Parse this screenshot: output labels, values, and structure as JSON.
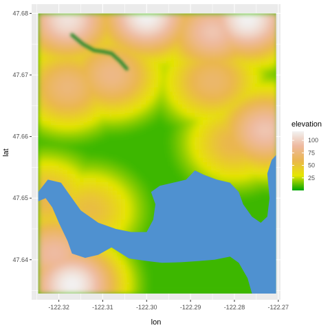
{
  "chart_data": {
    "type": "heatmap",
    "title": "",
    "xlabel": "lon",
    "ylabel": "lat",
    "xlim": [
      -122.3262,
      -122.2695
    ],
    "ylim": [
      47.6335,
      47.6815
    ],
    "x_ticks": [
      -122.32,
      -122.31,
      -122.3,
      -122.29,
      -122.28,
      -122.27
    ],
    "x_tick_labels": [
      "-122.32",
      "-122.31",
      "-122.30",
      "-122.29",
      "-122.28",
      "-122.27"
    ],
    "y_ticks": [
      47.64,
      47.65,
      47.66,
      47.67,
      47.68
    ],
    "y_tick_labels": [
      "47.64",
      "47.65",
      "47.66",
      "47.67",
      "47.68"
    ],
    "grid": true,
    "legend": {
      "title": "elevation",
      "placement": "right",
      "breaks": [
        100,
        75,
        50,
        25
      ],
      "break_labels": [
        "100",
        "75",
        "50",
        "25"
      ],
      "range": [
        0,
        118
      ],
      "gradient": [
        "#00a600",
        "#e6e600",
        "#eab64e",
        "#eeb99f",
        "#f2f2f2"
      ]
    },
    "water_color": "#4f91d0",
    "panel_background": "#ebebeb",
    "grid_color": "#ffffff",
    "extent": {
      "lon": [
        -122.3247,
        -122.2705
      ],
      "lat": [
        47.6345,
        47.68
      ]
    },
    "highlands": [
      {
        "lon": -122.318,
        "lat": 47.679,
        "elev": 110
      },
      {
        "lon": -122.3,
        "lat": 47.6795,
        "elev": 118
      },
      {
        "lon": -122.285,
        "lat": 47.677,
        "elev": 95
      },
      {
        "lon": -122.277,
        "lat": 47.679,
        "elev": 118
      },
      {
        "lon": -122.318,
        "lat": 47.668,
        "elev": 75
      },
      {
        "lon": -122.308,
        "lat": 47.67,
        "elev": 80
      },
      {
        "lon": -122.285,
        "lat": 47.669,
        "elev": 70
      },
      {
        "lon": -122.273,
        "lat": 47.661,
        "elev": 95
      },
      {
        "lon": -122.28,
        "lat": 47.659,
        "elev": 60
      },
      {
        "lon": -122.317,
        "lat": 47.636,
        "elev": 118
      },
      {
        "lon": -122.321,
        "lat": 47.641,
        "elev": 90
      },
      {
        "lon": -122.313,
        "lat": 47.648,
        "elev": 55
      },
      {
        "lon": -122.323,
        "lat": 47.65,
        "elev": 60
      }
    ],
    "water": {
      "lake_union": [
        [
          -122.3247,
          47.651
        ],
        [
          -122.3225,
          47.653
        ],
        [
          -122.3195,
          47.6525
        ],
        [
          -122.3175,
          47.6505
        ],
        [
          -122.315,
          47.648
        ],
        [
          -122.311,
          47.646
        ],
        [
          -122.307,
          47.645
        ],
        [
          -122.3035,
          47.6445
        ],
        [
          -122.3,
          47.6445
        ],
        [
          -122.2985,
          47.6465
        ],
        [
          -122.298,
          47.649
        ],
        [
          -122.299,
          47.651
        ],
        [
          -122.297,
          47.652
        ],
        [
          -122.294,
          47.6525
        ],
        [
          -122.291,
          47.653
        ],
        [
          -122.289,
          47.6545
        ],
        [
          -122.287,
          47.6538
        ],
        [
          -122.284,
          47.653
        ],
        [
          -122.281,
          47.6525
        ],
        [
          -122.279,
          47.651
        ],
        [
          -122.278,
          47.649
        ],
        [
          -122.276,
          47.647
        ],
        [
          -122.274,
          47.646
        ],
        [
          -122.2725,
          47.647
        ],
        [
          -122.272,
          47.65
        ],
        [
          -122.2725,
          47.654
        ],
        [
          -122.2715,
          47.6562
        ],
        [
          -122.2705,
          47.657
        ],
        [
          -122.2705,
          47.6345
        ],
        [
          -122.276,
          47.6345
        ],
        [
          -122.277,
          47.637
        ],
        [
          -122.279,
          47.6395
        ],
        [
          -122.281,
          47.6405
        ],
        [
          -122.2845,
          47.64
        ],
        [
          -122.288,
          47.6398
        ],
        [
          -122.292,
          47.6396
        ],
        [
          -122.2965,
          47.6395
        ],
        [
          -122.3,
          47.6398
        ],
        [
          -122.304,
          47.6402
        ],
        [
          -122.308,
          47.642
        ],
        [
          -122.311,
          47.6408
        ],
        [
          -122.314,
          47.6403
        ],
        [
          -122.317,
          47.641
        ],
        [
          -122.318,
          47.643
        ],
        [
          -122.32,
          47.646
        ],
        [
          -122.3215,
          47.6485
        ],
        [
          -122.323,
          47.65
        ],
        [
          -122.3247,
          47.6495
        ]
      ],
      "north_channel": [
        [
          -122.317,
          47.6765
        ],
        [
          -122.3145,
          47.675
        ],
        [
          -122.312,
          47.674
        ],
        [
          -122.31,
          47.6738
        ],
        [
          -122.308,
          47.6735
        ],
        [
          -122.306,
          47.6722
        ],
        [
          -122.3045,
          47.671
        ]
      ]
    }
  }
}
